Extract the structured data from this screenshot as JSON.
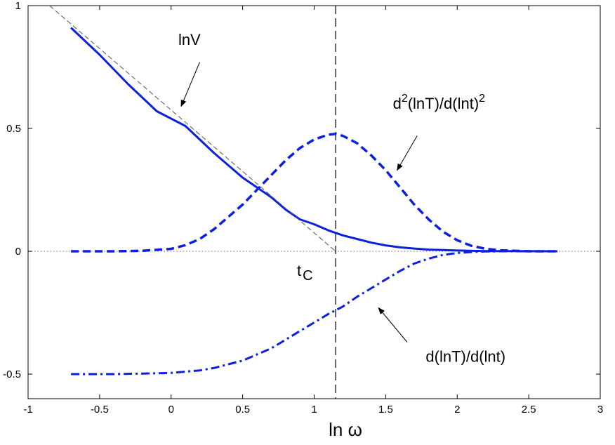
{
  "chart_data": {
    "type": "line",
    "xlabel": "ln ω",
    "ylabel": "",
    "title": "",
    "xlim": [
      -1,
      3
    ],
    "ylim": [
      -0.6,
      1
    ],
    "xticks": [
      -1,
      -0.5,
      0,
      0.5,
      1,
      1.5,
      2,
      2.5,
      3
    ],
    "xtick_labels": [
      "-1",
      "-0.5",
      "0",
      "0.5",
      "1",
      "1.5",
      "2",
      "2.5",
      "3"
    ],
    "yticks": [
      -0.5,
      0,
      0.5,
      1
    ],
    "ytick_labels": [
      "-0.5",
      "0",
      "0.5",
      "1"
    ],
    "grid": false,
    "series": [
      {
        "style": "solid",
        "color": "#0a1fe0",
        "x": [
          -0.7,
          -0.5,
          -0.3,
          -0.1,
          0.1,
          0.3,
          0.5,
          0.6,
          0.7,
          0.8,
          0.9,
          1.0,
          1.1,
          1.2,
          1.3,
          1.4,
          1.5,
          1.6,
          1.7,
          1.8,
          2.0,
          2.2,
          2.4,
          2.7
        ],
        "y": [
          0.91,
          0.8,
          0.68,
          0.57,
          0.51,
          0.4,
          0.3,
          0.26,
          0.22,
          0.17,
          0.13,
          0.11,
          0.085,
          0.065,
          0.05,
          0.035,
          0.024,
          0.016,
          0.011,
          0.007,
          0.003,
          0.001,
          0.0005,
          0.0
        ]
      },
      {
        "style": "dashed",
        "color": "#0a1fe0",
        "x": [
          -0.7,
          -0.4,
          -0.2,
          0.0,
          0.1,
          0.2,
          0.3,
          0.4,
          0.5,
          0.6,
          0.7,
          0.8,
          0.9,
          1.0,
          1.1,
          1.15,
          1.2,
          1.3,
          1.4,
          1.5,
          1.6,
          1.7,
          1.8,
          1.9,
          2.0,
          2.1,
          2.2,
          2.3,
          2.4,
          2.5,
          2.7
        ],
        "y": [
          0.0,
          0.0,
          0.002,
          0.01,
          0.025,
          0.05,
          0.09,
          0.14,
          0.19,
          0.25,
          0.31,
          0.37,
          0.42,
          0.455,
          0.475,
          0.478,
          0.47,
          0.44,
          0.39,
          0.33,
          0.26,
          0.19,
          0.13,
          0.08,
          0.045,
          0.022,
          0.01,
          0.004,
          0.002,
          0.0,
          0.0
        ]
      },
      {
        "style": "dashdot",
        "color": "#0a1fe0",
        "x": [
          -0.7,
          -0.4,
          -0.2,
          0.0,
          0.1,
          0.2,
          0.3,
          0.4,
          0.5,
          0.6,
          0.7,
          0.8,
          0.9,
          1.0,
          1.1,
          1.2,
          1.3,
          1.4,
          1.5,
          1.6,
          1.7,
          1.8,
          1.9,
          2.0,
          2.1,
          2.2,
          2.3,
          2.5,
          2.7
        ],
        "y": [
          -0.5,
          -0.5,
          -0.498,
          -0.495,
          -0.49,
          -0.485,
          -0.475,
          -0.46,
          -0.445,
          -0.42,
          -0.395,
          -0.36,
          -0.325,
          -0.29,
          -0.255,
          -0.225,
          -0.185,
          -0.15,
          -0.115,
          -0.08,
          -0.05,
          -0.03,
          -0.015,
          -0.007,
          -0.003,
          -0.001,
          0.0,
          0.0,
          0.0
        ]
      },
      {
        "style": "thin-dashed",
        "color": "#555555",
        "x": [
          -0.85,
          1.15
        ],
        "y": [
          1.0,
          0.0
        ]
      }
    ],
    "reference_lines": {
      "vertical_x": 1.15,
      "horizontal_y": 0
    },
    "annotations": [
      {
        "text": "lnV",
        "x": 0.05,
        "y": 0.84,
        "arrow_to": [
          0.07,
          0.59
        ]
      },
      {
        "text": "d²(lnT)/d(lnt)²",
        "x": 1.55,
        "y": 0.58,
        "arrow_to": [
          1.58,
          0.33
        ]
      },
      {
        "text": "d(lnT)/d(lnt)",
        "x": 1.78,
        "y": -0.45,
        "arrow_to": [
          1.45,
          -0.23
        ]
      },
      {
        "text": "t",
        "sub": "C",
        "x": 0.88,
        "y": -0.1
      }
    ]
  }
}
